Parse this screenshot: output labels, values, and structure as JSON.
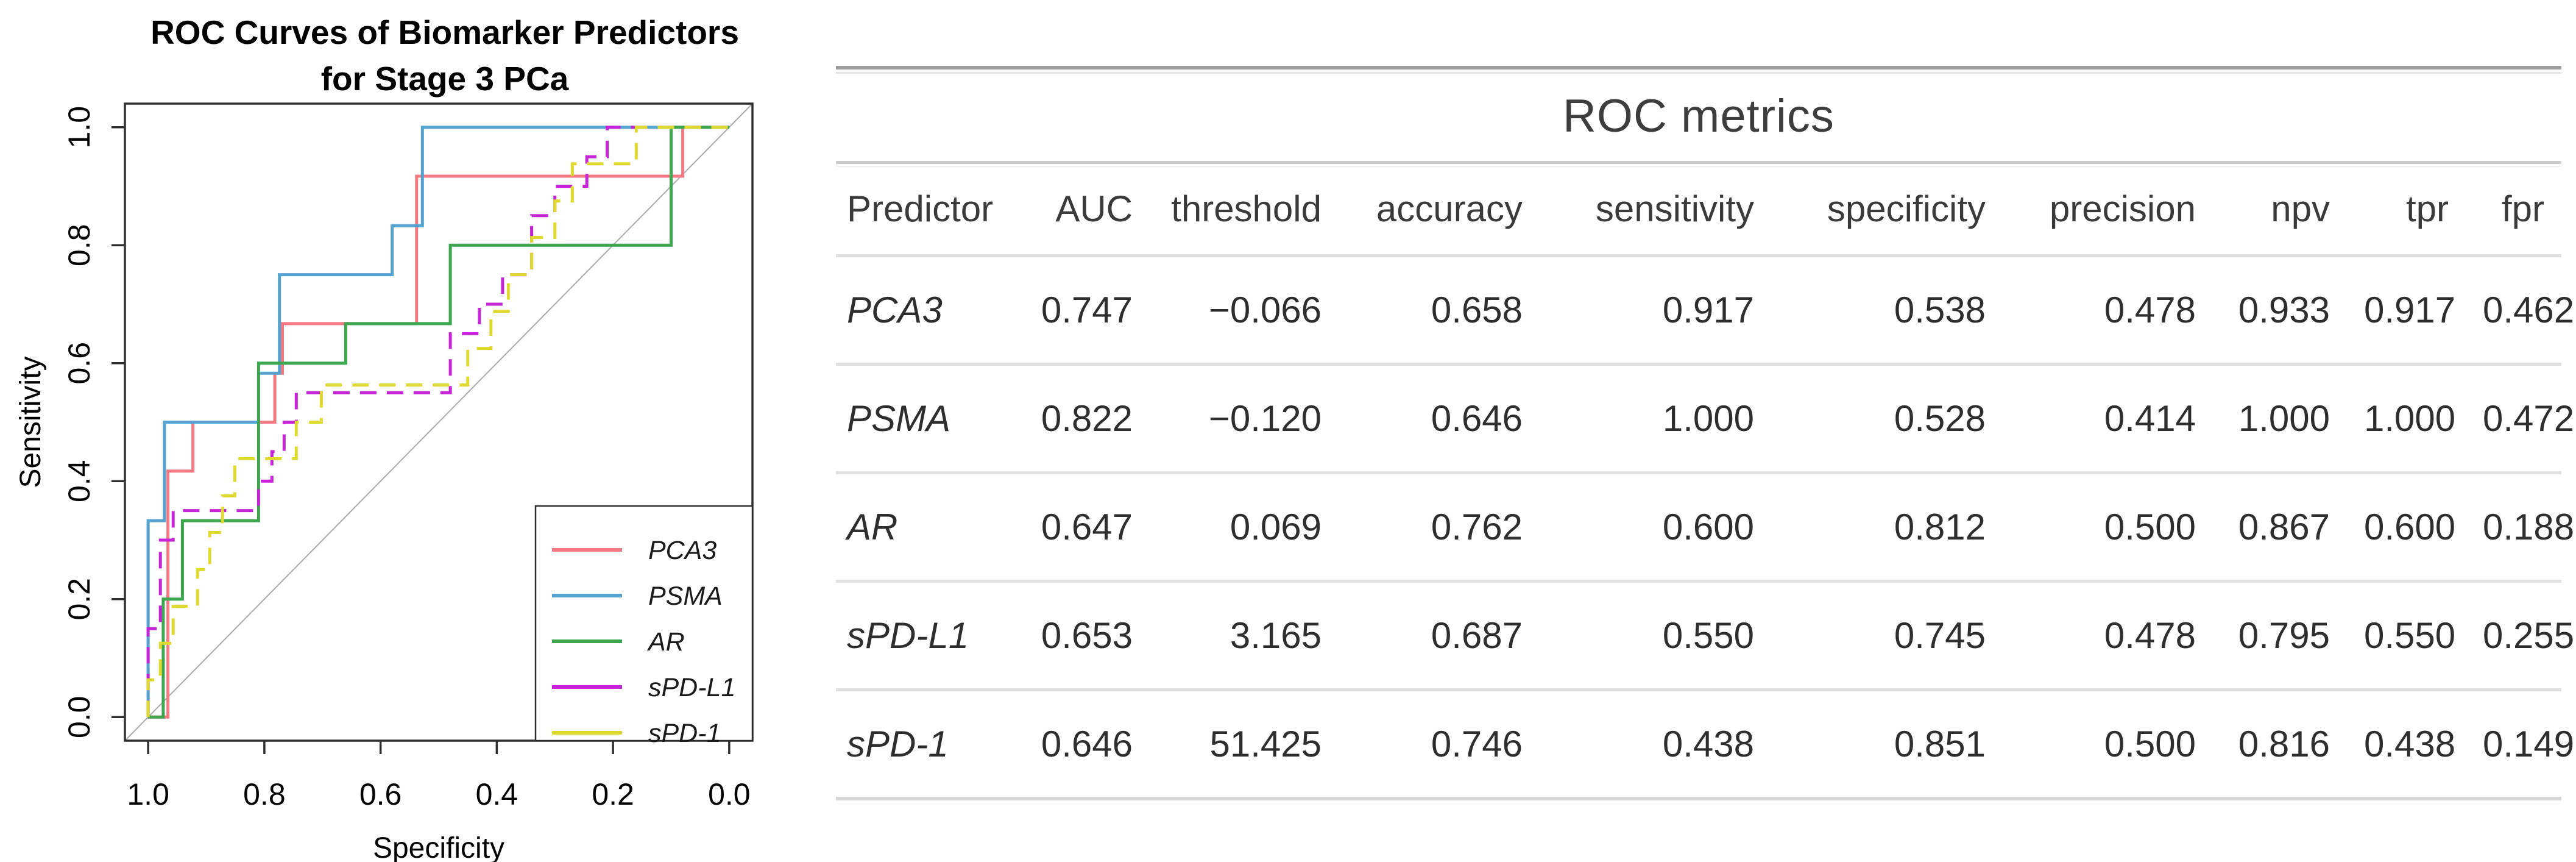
{
  "figure": {
    "background": "#ffffff",
    "description": "ROC curve plot of biomarker predictors with accompanying ROC metrics table"
  },
  "chart_data": [
    {
      "type": "line",
      "subtype": "roc-step-curves",
      "title_lines": [
        "ROC Curves of Biomarker Predictors",
        "for Stage 3 PCa"
      ],
      "xlabel": "Specificity",
      "ylabel": "Sensitivity",
      "x_tick_labels": [
        "1.0",
        "0.8",
        "0.6",
        "0.4",
        "0.2",
        "0.0"
      ],
      "y_tick_labels": [
        "0.0",
        "0.2",
        "0.4",
        "0.6",
        "0.8",
        "1.0"
      ],
      "x_axis_reversed": true,
      "xlim": [
        1.0,
        0.0
      ],
      "ylim": [
        0.0,
        1.0
      ],
      "grid": false,
      "legend_position": "bottom-right",
      "axis_color": "#2e2e2e",
      "reference_line": {
        "type": "diagonal-chance-line",
        "color": "#ababab"
      },
      "series": [
        {
          "name": "PCA3",
          "color": "#F37983",
          "style": "solid",
          "points_fpr_sens": [
            [
              0,
              0
            ],
            [
              0.034,
              0
            ],
            [
              0.034,
              0.417
            ],
            [
              0.077,
              0.417
            ],
            [
              0.077,
              0.5
            ],
            [
              0.218,
              0.5
            ],
            [
              0.218,
              0.583
            ],
            [
              0.231,
              0.583
            ],
            [
              0.231,
              0.667
            ],
            [
              0.462,
              0.667
            ],
            [
              0.462,
              0.917
            ],
            [
              0.92,
              0.917
            ],
            [
              0.92,
              1
            ],
            [
              1,
              1
            ]
          ]
        },
        {
          "name": "PSMA",
          "color": "#56A3CF",
          "style": "solid",
          "points_fpr_sens": [
            [
              0,
              0
            ],
            [
              0,
              0.333
            ],
            [
              0.028,
              0.333
            ],
            [
              0.028,
              0.5
            ],
            [
              0.19,
              0.5
            ],
            [
              0.19,
              0.583
            ],
            [
              0.226,
              0.583
            ],
            [
              0.226,
              0.75
            ],
            [
              0.42,
              0.75
            ],
            [
              0.42,
              0.833
            ],
            [
              0.472,
              0.833
            ],
            [
              0.472,
              1
            ],
            [
              1,
              1
            ]
          ]
        },
        {
          "name": "AR",
          "color": "#3EA64F",
          "style": "solid",
          "points_fpr_sens": [
            [
              0,
              0
            ],
            [
              0.026,
              0
            ],
            [
              0.026,
              0.2
            ],
            [
              0.059,
              0.2
            ],
            [
              0.059,
              0.333
            ],
            [
              0.19,
              0.333
            ],
            [
              0.19,
              0.6
            ],
            [
              0.34,
              0.6
            ],
            [
              0.34,
              0.667
            ],
            [
              0.52,
              0.667
            ],
            [
              0.52,
              0.8
            ],
            [
              0.9,
              0.8
            ],
            [
              0.9,
              1
            ],
            [
              1,
              1
            ]
          ]
        },
        {
          "name": "sPD-L1",
          "color": "#C525D6",
          "style": "dashed",
          "points_fpr_sens": [
            [
              0,
              0
            ],
            [
              0,
              0.15
            ],
            [
              0.021,
              0.15
            ],
            [
              0.021,
              0.3
            ],
            [
              0.043,
              0.3
            ],
            [
              0.043,
              0.35
            ],
            [
              0.19,
              0.35
            ],
            [
              0.19,
              0.4
            ],
            [
              0.213,
              0.4
            ],
            [
              0.213,
              0.45
            ],
            [
              0.234,
              0.45
            ],
            [
              0.234,
              0.5
            ],
            [
              0.255,
              0.5
            ],
            [
              0.255,
              0.55
            ],
            [
              0.52,
              0.55
            ],
            [
              0.52,
              0.65
            ],
            [
              0.57,
              0.65
            ],
            [
              0.57,
              0.7
            ],
            [
              0.61,
              0.7
            ],
            [
              0.61,
              0.75
            ],
            [
              0.66,
              0.75
            ],
            [
              0.66,
              0.85
            ],
            [
              0.7,
              0.85
            ],
            [
              0.7,
              0.9
            ],
            [
              0.755,
              0.9
            ],
            [
              0.755,
              0.95
            ],
            [
              0.79,
              0.95
            ],
            [
              0.79,
              1
            ],
            [
              1,
              1
            ]
          ]
        },
        {
          "name": "sPD-1",
          "color": "#DFDA30",
          "style": "dashed",
          "points_fpr_sens": [
            [
              0,
              0
            ],
            [
              0,
              0.063
            ],
            [
              0.021,
              0.063
            ],
            [
              0.021,
              0.125
            ],
            [
              0.043,
              0.125
            ],
            [
              0.043,
              0.188
            ],
            [
              0.085,
              0.188
            ],
            [
              0.085,
              0.25
            ],
            [
              0.106,
              0.25
            ],
            [
              0.106,
              0.313
            ],
            [
              0.128,
              0.313
            ],
            [
              0.128,
              0.375
            ],
            [
              0.149,
              0.375
            ],
            [
              0.149,
              0.438
            ],
            [
              0.255,
              0.438
            ],
            [
              0.255,
              0.5
            ],
            [
              0.298,
              0.5
            ],
            [
              0.298,
              0.563
            ],
            [
              0.55,
              0.563
            ],
            [
              0.55,
              0.625
            ],
            [
              0.59,
              0.625
            ],
            [
              0.59,
              0.688
            ],
            [
              0.62,
              0.688
            ],
            [
              0.62,
              0.75
            ],
            [
              0.66,
              0.75
            ],
            [
              0.66,
              0.813
            ],
            [
              0.7,
              0.813
            ],
            [
              0.7,
              0.875
            ],
            [
              0.73,
              0.875
            ],
            [
              0.73,
              0.938
            ],
            [
              0.84,
              0.938
            ],
            [
              0.84,
              1
            ],
            [
              1,
              1
            ]
          ]
        }
      ],
      "optimal_points_fpr_sens": {
        "PCA3": [
          0.462,
          0.917
        ],
        "PSMA": [
          0.472,
          1.0
        ],
        "AR": [
          0.188,
          0.6
        ],
        "sPD-L1": [
          0.255,
          0.55
        ],
        "sPD-1": [
          0.149,
          0.438
        ]
      }
    },
    {
      "type": "table",
      "title": "ROC metrics",
      "columns": [
        "Predictor",
        "AUC",
        "threshold",
        "accuracy",
        "sensitivity",
        "specificity",
        "precision",
        "npv",
        "tpr",
        "fpr"
      ],
      "rows": [
        [
          "PCA3",
          "0.747",
          "−0.066",
          "0.658",
          "0.917",
          "0.538",
          "0.478",
          "0.933",
          "0.917",
          "0.462"
        ],
        [
          "PSMA",
          "0.822",
          "−0.120",
          "0.646",
          "1.000",
          "0.528",
          "0.414",
          "1.000",
          "1.000",
          "0.472"
        ],
        [
          "AR",
          "0.647",
          "0.069",
          "0.762",
          "0.600",
          "0.812",
          "0.500",
          "0.867",
          "0.600",
          "0.188"
        ],
        [
          "sPD-L1",
          "0.653",
          "3.165",
          "0.687",
          "0.550",
          "0.745",
          "0.478",
          "0.795",
          "0.550",
          "0.255"
        ],
        [
          "sPD-1",
          "0.646",
          "51.425",
          "0.746",
          "0.438",
          "0.851",
          "0.500",
          "0.816",
          "0.438",
          "0.149"
        ]
      ]
    }
  ]
}
